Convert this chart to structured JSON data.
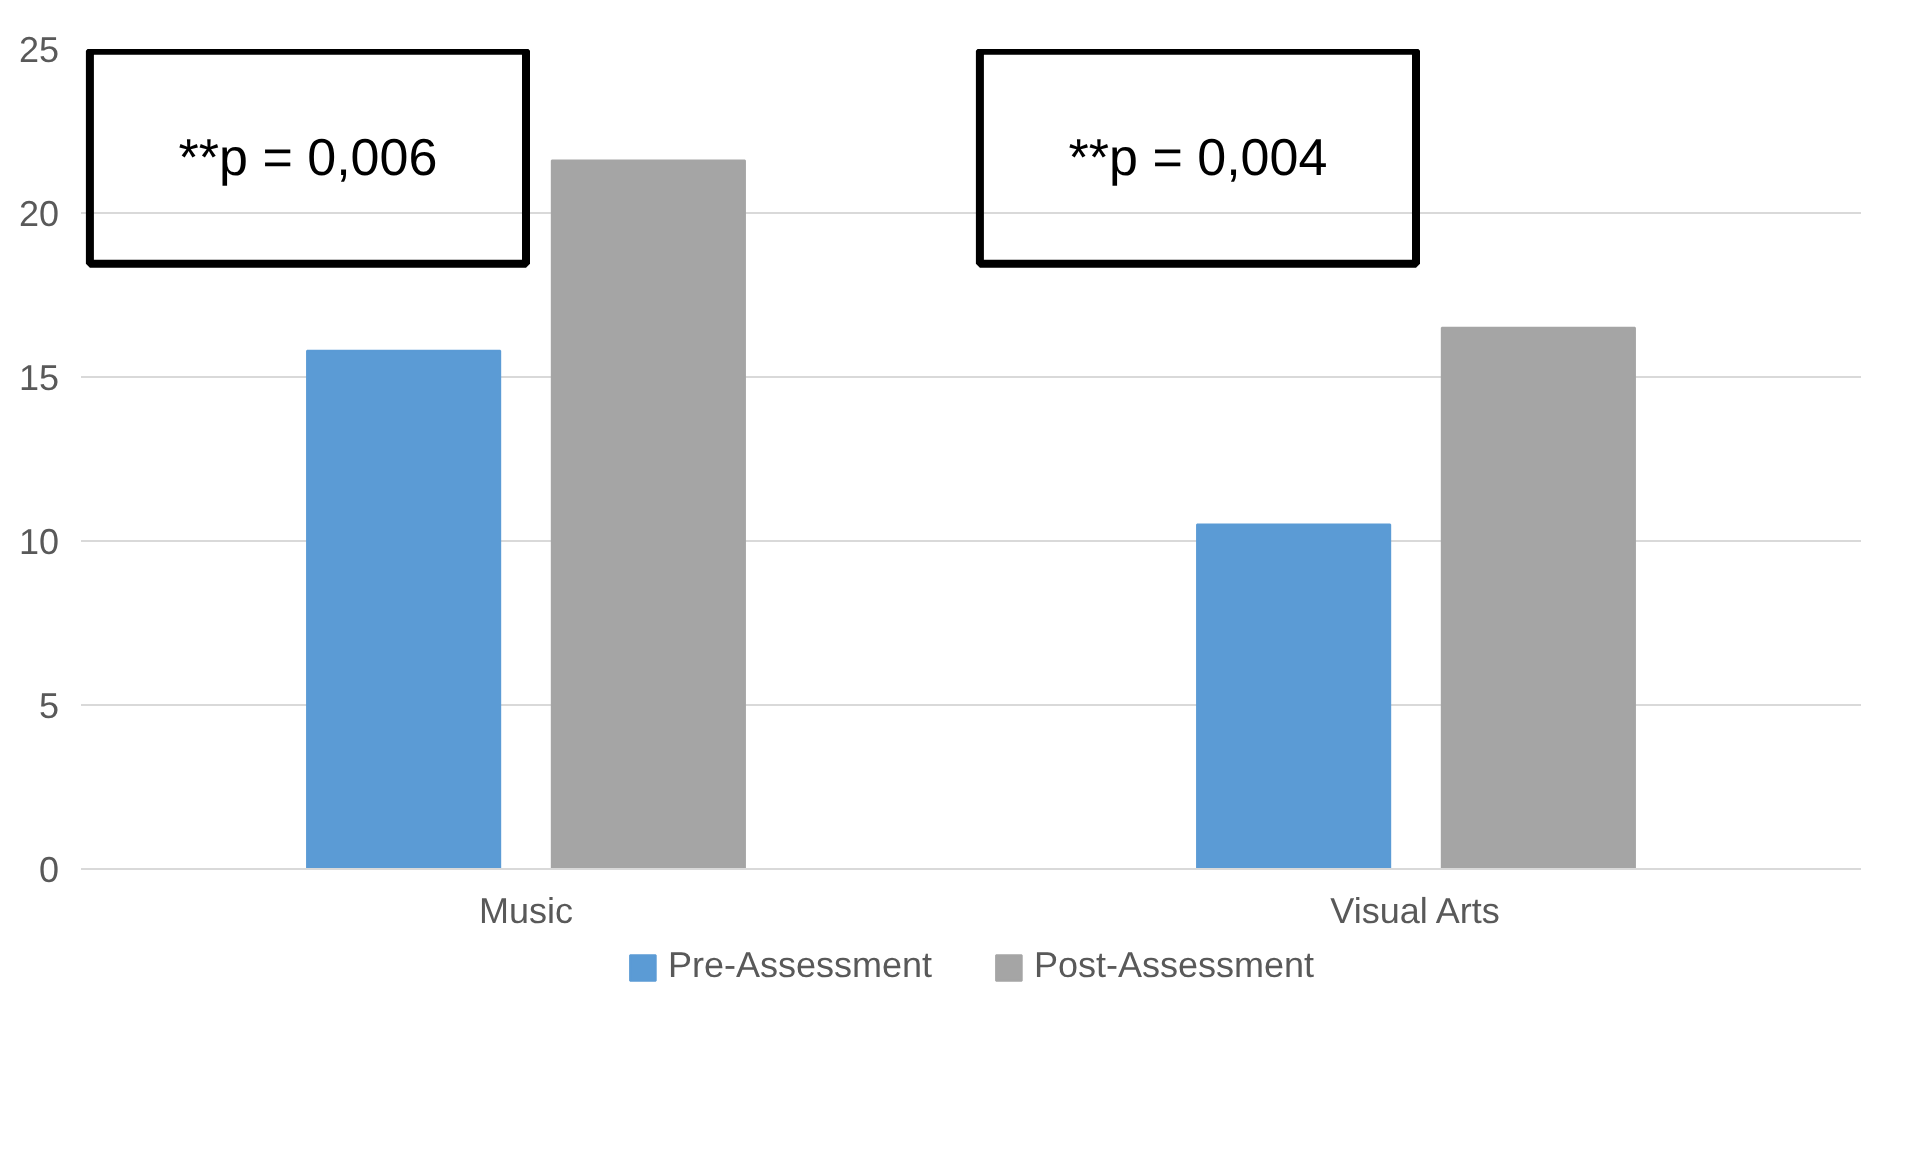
{
  "chart_data": {
    "type": "bar",
    "categories": [
      "Music",
      "Visual Arts"
    ],
    "series": [
      {
        "name": "Pre-Assessment",
        "color": "#5b9bd5",
        "values": [
          15.8,
          10.5
        ]
      },
      {
        "name": "Post-Assessment",
        "color": "#a5a5a5",
        "values": [
          21.6,
          16.5
        ]
      }
    ],
    "annotations": [
      "**p = 0,006",
      "**p = 0,004"
    ],
    "ylim": [
      0,
      25
    ],
    "yticks": [
      0,
      5,
      10,
      15,
      20,
      25
    ],
    "grid": "y",
    "legend": "bottom"
  }
}
